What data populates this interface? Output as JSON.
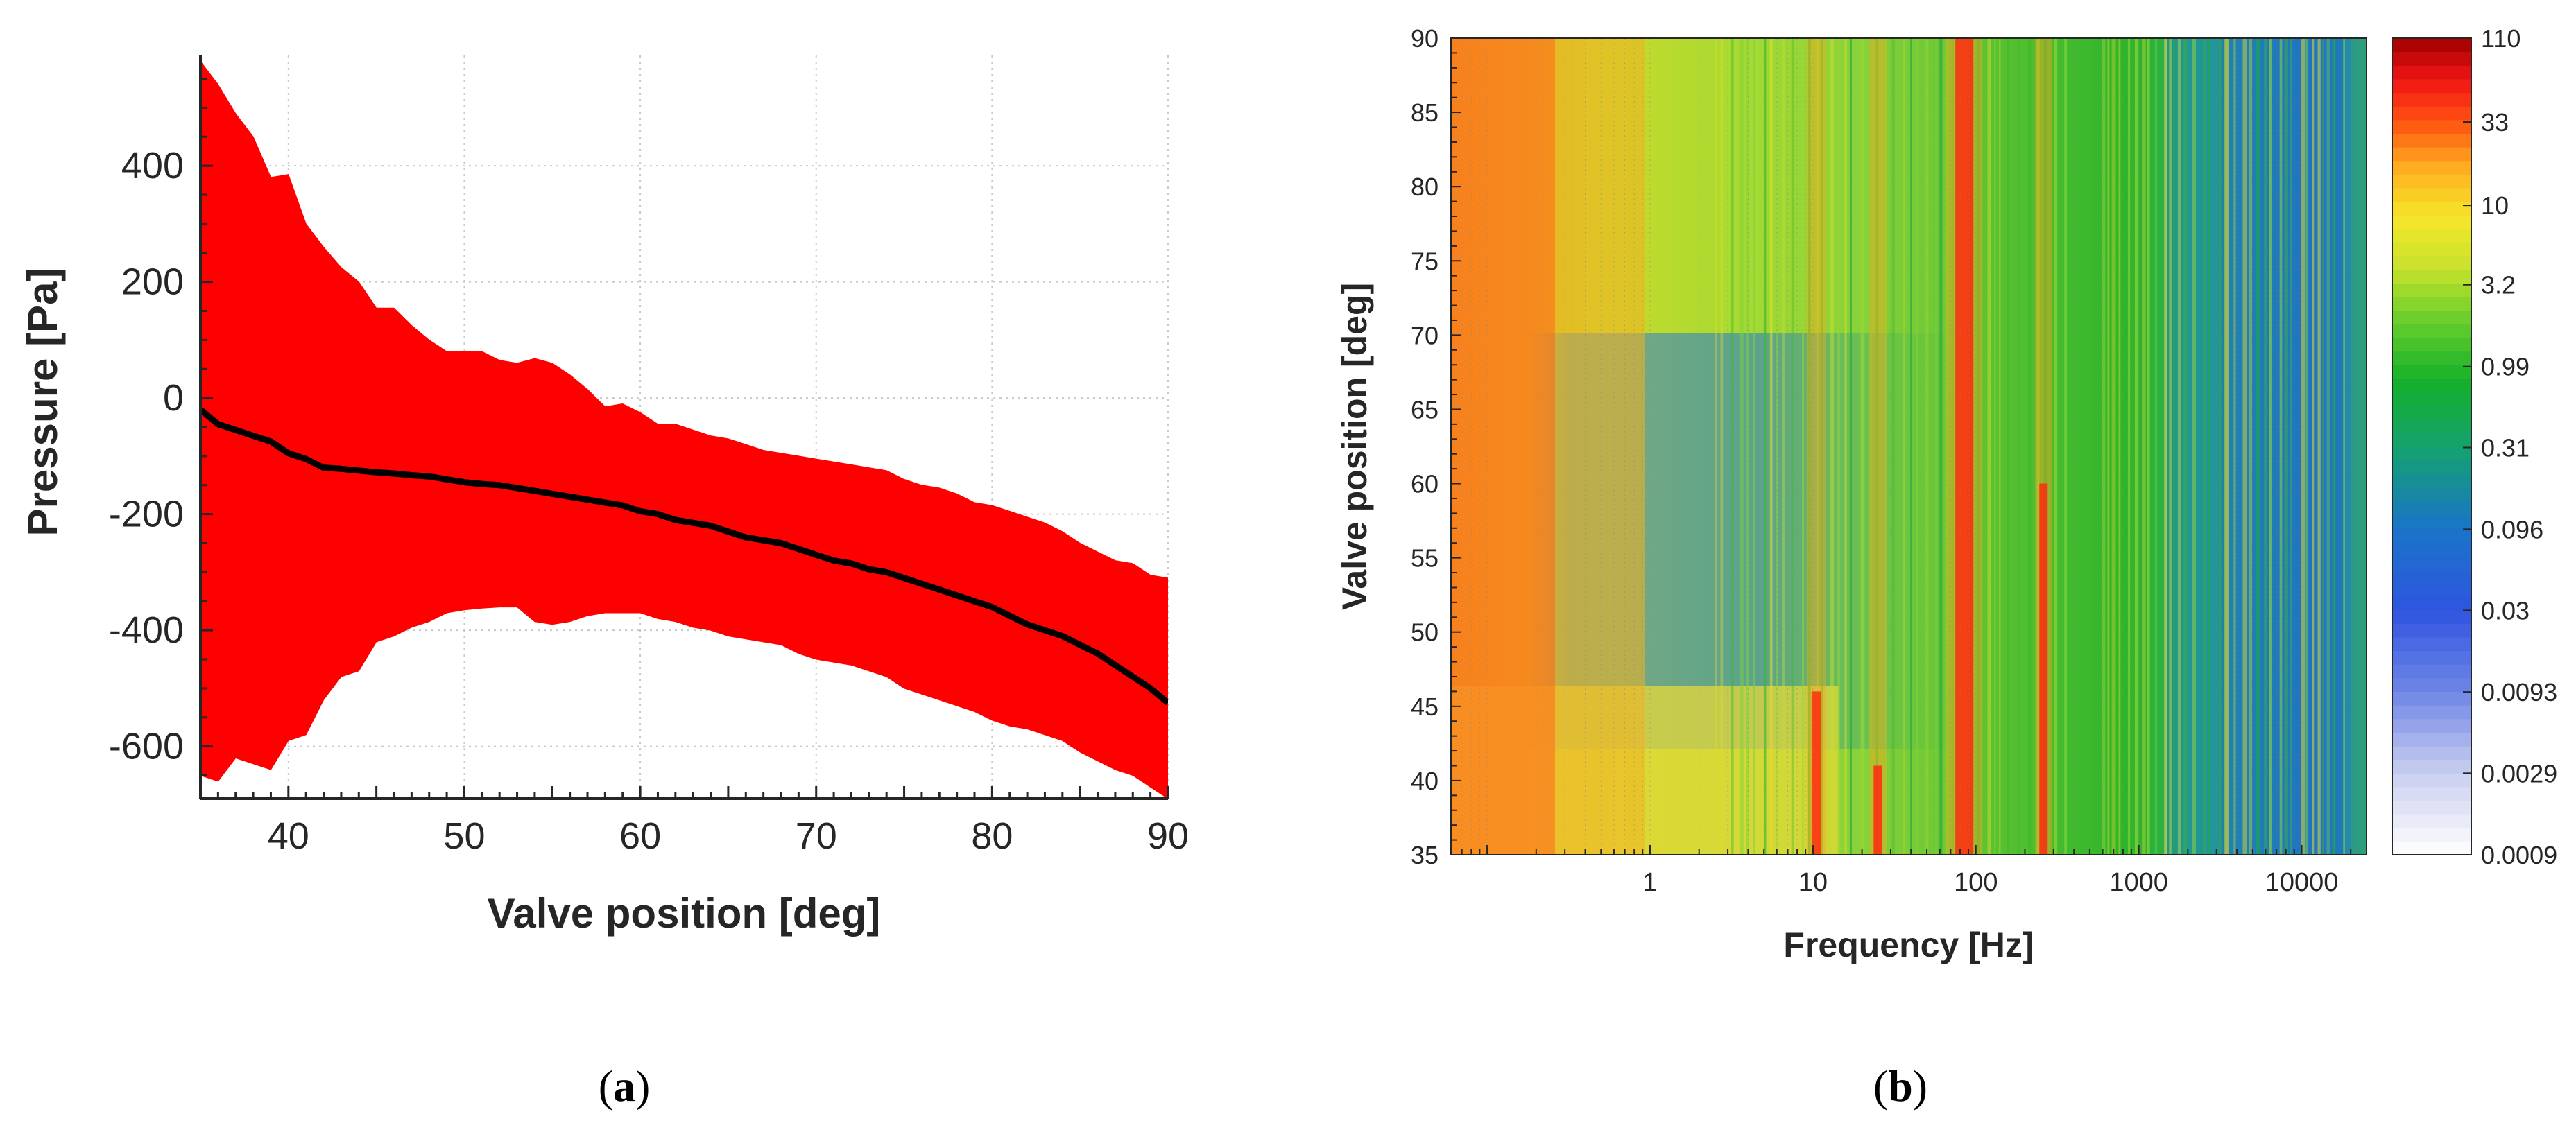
{
  "chart_data": [
    {
      "id": "a",
      "type": "area",
      "caption": "(a)",
      "caption_letter": "a",
      "xlabel": "Valve position [deg]",
      "ylabel": "Pressure [Pa]",
      "xlim": [
        35,
        90
      ],
      "ylim": [
        -690,
        590
      ],
      "xticks": [
        40,
        50,
        60,
        70,
        80,
        90
      ],
      "yticks": [
        -600,
        -400,
        -200,
        0,
        200,
        400
      ],
      "grid": true,
      "colors": {
        "band": "#ff0000",
        "mean": "#000000"
      },
      "x": [
        35,
        36,
        37,
        38,
        39,
        40,
        41,
        42,
        43,
        44,
        45,
        46,
        47,
        48,
        49,
        50,
        51,
        52,
        53,
        54,
        55,
        56,
        57,
        58,
        59,
        60,
        61,
        62,
        63,
        64,
        65,
        66,
        67,
        68,
        69,
        70,
        71,
        72,
        73,
        74,
        75,
        76,
        77,
        78,
        79,
        80,
        81,
        82,
        83,
        84,
        85,
        86,
        87,
        88,
        89,
        90
      ],
      "series": [
        {
          "name": "upper",
          "values": [
            580,
            540,
            490,
            450,
            380,
            385,
            300,
            260,
            225,
            200,
            155,
            155,
            125,
            100,
            80,
            80,
            80,
            65,
            60,
            68,
            60,
            40,
            15,
            -15,
            -10,
            -25,
            -45,
            -45,
            -55,
            -65,
            -70,
            -80,
            -90,
            -95,
            -100,
            -105,
            -110,
            -115,
            -120,
            -125,
            -140,
            -150,
            -155,
            -165,
            -180,
            -185,
            -195,
            -205,
            -215,
            -230,
            -250,
            -265,
            -280,
            -285,
            -305,
            -310
          ]
        },
        {
          "name": "mean",
          "values": [
            -20,
            -45,
            -55,
            -65,
            -75,
            -95,
            -105,
            -120,
            -122,
            -125,
            -128,
            -130,
            -133,
            -135,
            -140,
            -145,
            -148,
            -150,
            -155,
            -160,
            -165,
            -170,
            -175,
            -180,
            -185,
            -195,
            -200,
            -210,
            -215,
            -220,
            -230,
            -240,
            -245,
            -250,
            -260,
            -270,
            -280,
            -285,
            -295,
            -300,
            -310,
            -320,
            -330,
            -340,
            -350,
            -360,
            -375,
            -390,
            -400,
            -410,
            -425,
            -440,
            -460,
            -480,
            -500,
            -525
          ]
        },
        {
          "name": "lower",
          "values": [
            -650,
            -660,
            -620,
            -630,
            -640,
            -590,
            -580,
            -520,
            -480,
            -470,
            -420,
            -410,
            -395,
            -385,
            -370,
            -365,
            -362,
            -360,
            -360,
            -385,
            -390,
            -385,
            -375,
            -370,
            -370,
            -370,
            -380,
            -385,
            -395,
            -400,
            -410,
            -415,
            -420,
            -425,
            -440,
            -450,
            -455,
            -460,
            -470,
            -480,
            -500,
            -510,
            -520,
            -530,
            -540,
            -555,
            -565,
            -570,
            -580,
            -590,
            -610,
            -625,
            -640,
            -650,
            -670,
            -690
          ]
        }
      ]
    },
    {
      "id": "b",
      "type": "heatmap",
      "caption": "(b)",
      "caption_letter": "b",
      "xlabel": "Frequency [Hz]",
      "ylabel": "Valve position [deg]",
      "xscale": "log",
      "xlim": [
        0.06,
        25000
      ],
      "ylim": [
        35,
        90
      ],
      "xticks": [
        1,
        10,
        100,
        1000,
        10000
      ],
      "xtick_labels": [
        "1",
        "10",
        "100",
        "1000",
        "10000"
      ],
      "yticks": [
        35,
        40,
        45,
        50,
        55,
        60,
        65,
        70,
        75,
        80,
        85,
        90
      ],
      "colorbar": {
        "scale": "log",
        "range": [
          0.0009,
          110
        ],
        "tick_values": [
          110,
          33,
          10,
          3.2,
          0.99,
          0.31,
          0.096,
          0.03,
          0.0093,
          0.0029,
          0.0009
        ],
        "tick_labels": [
          "110",
          "33",
          "10",
          "3.2",
          "0.99",
          "0.31",
          "0.096",
          "0.03",
          "0.0093",
          "0.0029",
          "0.0009"
        ]
      },
      "peaks_hz": [
        10.5,
        25,
        85,
        260
      ]
    }
  ]
}
